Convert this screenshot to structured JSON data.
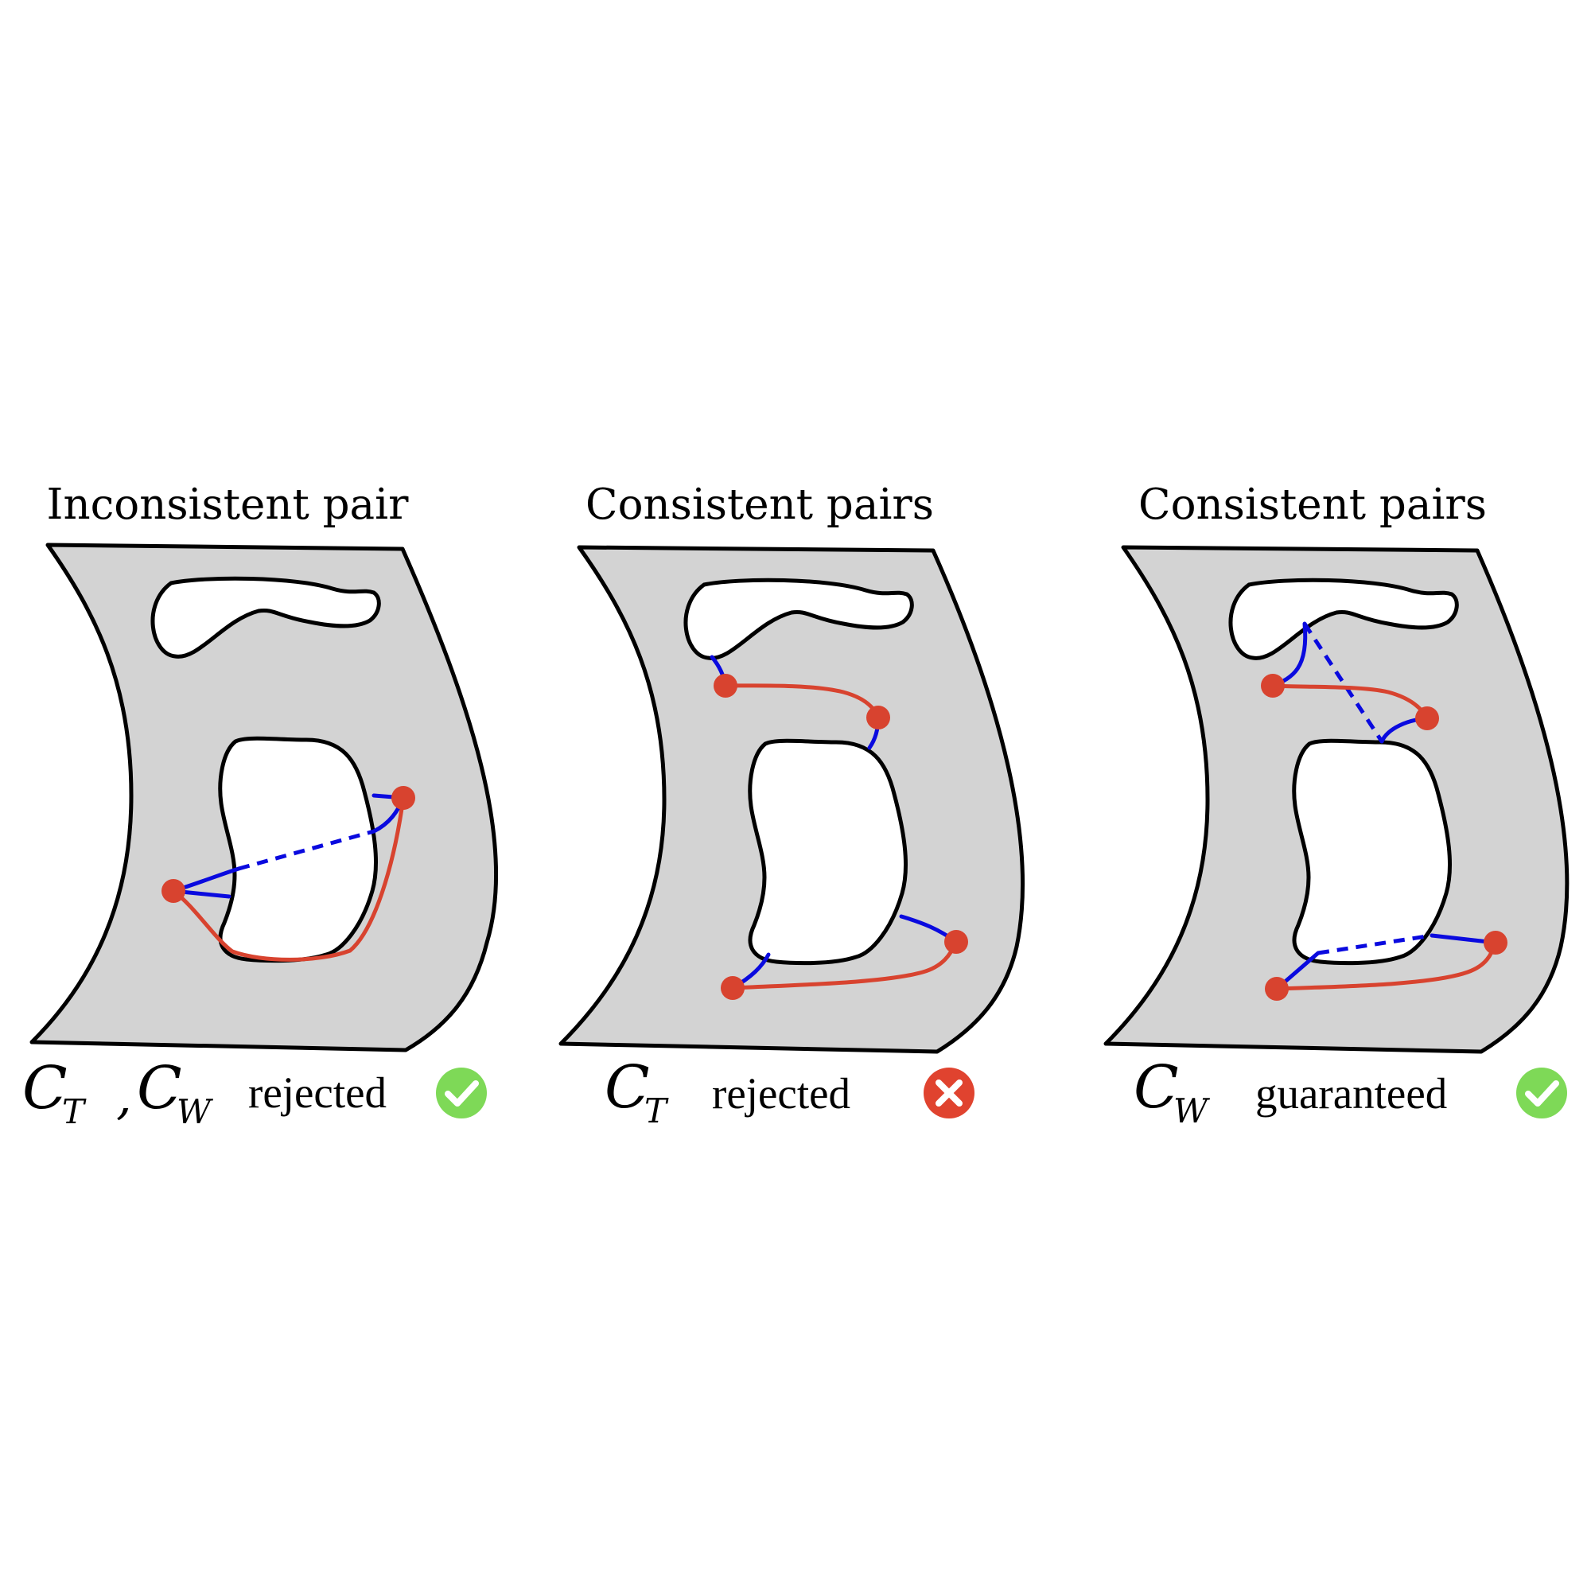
{
  "panels": [
    {
      "title": "Inconsistent pair",
      "caption": {
        "math1_main": "C",
        "math1_sub": "T",
        "separator": ",",
        "math2_main": "C",
        "math2_sub": "W",
        "text": "rejected"
      },
      "badge": {
        "icon": "check-icon",
        "color": "#7ed957",
        "symbol": "✓"
      }
    },
    {
      "title": "Consistent pairs",
      "caption": {
        "math1_main": "C",
        "math1_sub": "T",
        "text": "rejected"
      },
      "badge": {
        "icon": "cross-icon",
        "color": "#e0432f",
        "symbol": "✕"
      }
    },
    {
      "title": "Consistent pairs",
      "caption": {
        "math1_main": "C",
        "math1_sub": "W",
        "text": "guaranteed"
      },
      "badge": {
        "icon": "check-icon",
        "color": "#7ed957",
        "symbol": "✓"
      }
    }
  ],
  "colors": {
    "sheet": "#d3d3d3",
    "point": "#d8432f",
    "path_red": "#d8432f",
    "path_blue": "#0a0adf"
  }
}
